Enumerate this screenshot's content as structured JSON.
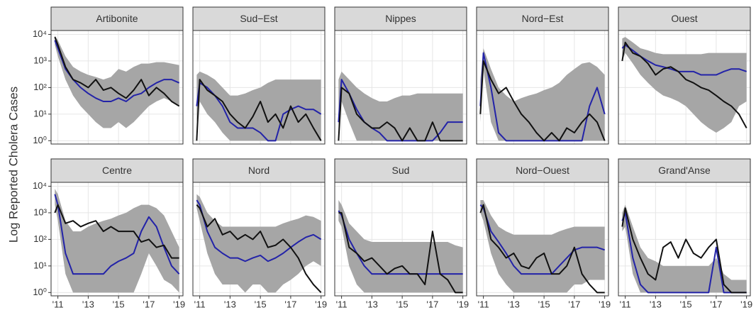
{
  "chart_data": {
    "type": "line",
    "ylabel": "Log Reported Cholera Cases",
    "log_y": true,
    "grid": true,
    "band_color": "#a6a6a6",
    "observed_color": "#111111",
    "median_color": "#2323a8",
    "x": [
      2010.8,
      2011,
      2011.5,
      2012,
      2012.5,
      2013,
      2013.5,
      2014,
      2014.5,
      2015,
      2015.5,
      2016,
      2016.5,
      2017,
      2017.5,
      2018,
      2018.5,
      2019
    ],
    "xlim": [
      2010.55,
      2019.25
    ],
    "xticks": [
      {
        "value": 2011,
        "label": "'11"
      },
      {
        "value": 2013,
        "label": "'13"
      },
      {
        "value": 2015,
        "label": "'15"
      },
      {
        "value": 2017,
        "label": "'17"
      },
      {
        "value": 2019,
        "label": "'19"
      }
    ],
    "ylim": [
      0.75,
      14000
    ],
    "yticks": [
      {
        "value": 1,
        "label": "10⁰"
      },
      {
        "value": 10,
        "label": "10¹"
      },
      {
        "value": 100,
        "label": "10²"
      },
      {
        "value": 1000,
        "label": "10³"
      },
      {
        "value": 10000,
        "label": "10⁴"
      }
    ],
    "facets": [
      {
        "title": "Artibonite",
        "observed": [
          8000,
          4000,
          600,
          200,
          150,
          100,
          200,
          80,
          100,
          60,
          40,
          80,
          200,
          50,
          100,
          60,
          30,
          20
        ],
        "median": [
          6000,
          3000,
          500,
          200,
          100,
          60,
          40,
          30,
          30,
          40,
          30,
          50,
          60,
          100,
          150,
          200,
          200,
          150
        ],
        "lower": [
          4000,
          1500,
          200,
          50,
          20,
          10,
          5,
          3,
          3,
          5,
          3,
          5,
          10,
          20,
          30,
          40,
          30,
          20
        ],
        "upper": [
          9000,
          6000,
          1500,
          600,
          400,
          300,
          250,
          200,
          250,
          500,
          400,
          600,
          800,
          800,
          900,
          900,
          800,
          700
        ]
      },
      {
        "title": "Sud−Est",
        "observed": [
          1,
          200,
          80,
          50,
          30,
          10,
          5,
          3,
          8,
          30,
          5,
          10,
          3,
          20,
          5,
          10,
          3,
          1
        ],
        "median": [
          20,
          150,
          100,
          50,
          20,
          5,
          3,
          3,
          3,
          2,
          1,
          1,
          10,
          15,
          20,
          15,
          15,
          10
        ],
        "lower": [
          5,
          30,
          10,
          5,
          2,
          1,
          1,
          1,
          1,
          1,
          1,
          1,
          1,
          1,
          1,
          1,
          1,
          1
        ],
        "upper": [
          300,
          400,
          300,
          200,
          100,
          50,
          50,
          60,
          80,
          100,
          150,
          200,
          200,
          200,
          200,
          200,
          200,
          200
        ]
      },
      {
        "title": "Nippes",
        "observed": [
          1,
          100,
          60,
          10,
          5,
          3,
          3,
          5,
          3,
          1,
          3,
          1,
          1,
          5,
          1,
          1,
          1,
          1
        ],
        "median": [
          5,
          200,
          60,
          15,
          5,
          3,
          2,
          1,
          1,
          1,
          1,
          1,
          1,
          1,
          2,
          5,
          5,
          5
        ],
        "lower": [
          1,
          30,
          5,
          1,
          1,
          1,
          1,
          1,
          1,
          1,
          1,
          1,
          1,
          1,
          1,
          1,
          1,
          1
        ],
        "upper": [
          200,
          400,
          200,
          100,
          60,
          40,
          30,
          30,
          40,
          50,
          50,
          60,
          60,
          60,
          60,
          60,
          60,
          60
        ]
      },
      {
        "title": "Nord−Est",
        "observed": [
          10,
          1000,
          200,
          60,
          100,
          30,
          10,
          5,
          2,
          1,
          2,
          1,
          3,
          2,
          5,
          10,
          5,
          1
        ],
        "median": [
          20,
          2000,
          100,
          2,
          1,
          1,
          1,
          1,
          1,
          1,
          1,
          1,
          1,
          1,
          1,
          20,
          100,
          10
        ],
        "lower": [
          5,
          500,
          5,
          1,
          1,
          1,
          1,
          1,
          1,
          1,
          1,
          1,
          1,
          1,
          1,
          1,
          1,
          1
        ],
        "upper": [
          200,
          3000,
          500,
          100,
          50,
          30,
          40,
          50,
          60,
          80,
          100,
          150,
          300,
          500,
          800,
          900,
          600,
          300
        ]
      },
      {
        "title": "Ouest",
        "observed": [
          1000,
          5000,
          2000,
          1500,
          800,
          300,
          500,
          600,
          400,
          200,
          150,
          100,
          80,
          50,
          30,
          20,
          10,
          3
        ],
        "median": [
          3000,
          4000,
          2500,
          1500,
          1000,
          700,
          600,
          500,
          400,
          400,
          400,
          300,
          300,
          300,
          400,
          500,
          500,
          400
        ],
        "lower": [
          1000,
          2000,
          800,
          300,
          150,
          80,
          50,
          40,
          30,
          20,
          10,
          5,
          3,
          2,
          3,
          5,
          20,
          30
        ],
        "upper": [
          7000,
          8000,
          5000,
          3000,
          2500,
          2000,
          1800,
          1800,
          1800,
          1800,
          1800,
          1800,
          2000,
          2000,
          2000,
          2000,
          2000,
          2000
        ]
      },
      {
        "title": "Centre",
        "observed": [
          1000,
          2000,
          400,
          500,
          300,
          400,
          500,
          200,
          300,
          200,
          200,
          200,
          80,
          100,
          50,
          60,
          20,
          20
        ],
        "median": [
          5000,
          2000,
          30,
          5,
          5,
          5,
          5,
          5,
          10,
          15,
          20,
          30,
          200,
          700,
          300,
          50,
          10,
          5
        ],
        "lower": [
          2000,
          500,
          5,
          1,
          1,
          1,
          1,
          1,
          1,
          1,
          1,
          1,
          5,
          30,
          10,
          3,
          2,
          1
        ],
        "upper": [
          8000,
          5000,
          500,
          200,
          200,
          300,
          400,
          500,
          600,
          800,
          1000,
          1500,
          2000,
          2000,
          1500,
          800,
          200,
          50
        ]
      },
      {
        "title": "Nord",
        "observed": [
          2000,
          1500,
          300,
          600,
          150,
          200,
          100,
          150,
          100,
          200,
          50,
          60,
          100,
          50,
          20,
          5,
          2,
          1
        ],
        "median": [
          3000,
          2000,
          200,
          50,
          30,
          20,
          20,
          15,
          20,
          25,
          15,
          20,
          30,
          50,
          80,
          120,
          150,
          100
        ],
        "lower": [
          1500,
          500,
          30,
          5,
          2,
          2,
          2,
          1,
          2,
          2,
          1,
          1,
          2,
          3,
          5,
          10,
          15,
          10
        ],
        "upper": [
          5000,
          4000,
          1000,
          500,
          300,
          300,
          300,
          300,
          300,
          300,
          300,
          300,
          400,
          500,
          600,
          800,
          700,
          500
        ]
      },
      {
        "title": "Sud",
        "observed": [
          1000,
          1000,
          50,
          30,
          15,
          20,
          10,
          5,
          8,
          10,
          5,
          5,
          2,
          200,
          5,
          3,
          1,
          1
        ],
        "median": [
          1200,
          800,
          100,
          30,
          10,
          5,
          5,
          5,
          5,
          5,
          5,
          5,
          5,
          5,
          5,
          5,
          5,
          5
        ],
        "lower": [
          500,
          300,
          10,
          2,
          1,
          1,
          1,
          1,
          1,
          1,
          1,
          1,
          1,
          1,
          1,
          1,
          1,
          1
        ],
        "upper": [
          3000,
          2000,
          400,
          200,
          100,
          80,
          80,
          80,
          80,
          80,
          80,
          80,
          80,
          80,
          80,
          80,
          60,
          50
        ]
      },
      {
        "title": "Nord−Ouest",
        "observed": [
          1000,
          2000,
          100,
          50,
          20,
          30,
          10,
          8,
          20,
          30,
          5,
          5,
          10,
          50,
          5,
          2,
          1,
          1
        ],
        "median": [
          2000,
          1500,
          200,
          80,
          30,
          10,
          5,
          5,
          5,
          5,
          5,
          10,
          20,
          40,
          50,
          50,
          50,
          40
        ],
        "lower": [
          1000,
          500,
          30,
          5,
          2,
          1,
          1,
          1,
          1,
          1,
          1,
          1,
          1,
          2,
          2,
          3,
          3,
          3
        ],
        "upper": [
          3000,
          3000,
          800,
          300,
          200,
          150,
          150,
          150,
          150,
          150,
          150,
          200,
          250,
          300,
          300,
          300,
          300,
          300
        ]
      },
      {
        "title": "Grand'Anse",
        "observed": [
          300,
          1500,
          100,
          20,
          5,
          3,
          50,
          80,
          20,
          100,
          30,
          20,
          50,
          100,
          2,
          1,
          1,
          1
        ],
        "median": [
          500,
          1000,
          20,
          2,
          1,
          1,
          1,
          1,
          1,
          1,
          1,
          1,
          1,
          50,
          1,
          1,
          1,
          1
        ],
        "lower": [
          200,
          300,
          5,
          1,
          1,
          1,
          1,
          1,
          1,
          1,
          1,
          1,
          1,
          1,
          1,
          1,
          1,
          1
        ],
        "upper": [
          1000,
          2000,
          300,
          50,
          20,
          15,
          10,
          10,
          10,
          10,
          10,
          10,
          10,
          20,
          5,
          3,
          3,
          3
        ]
      }
    ]
  }
}
